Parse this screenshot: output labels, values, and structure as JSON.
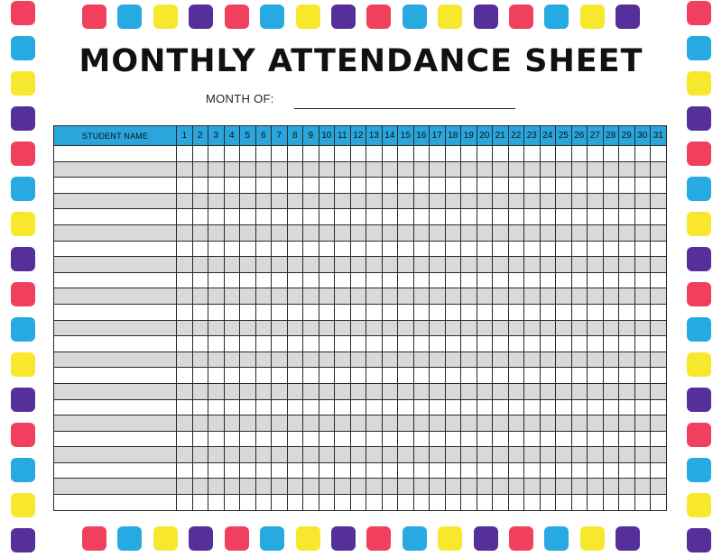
{
  "title": "MONTHLY ATTENDANCE SHEET",
  "month_label": "MONTH OF:",
  "table": {
    "name_header": "STUDENT NAME",
    "days": [
      "1",
      "2",
      "3",
      "4",
      "5",
      "6",
      "7",
      "8",
      "9",
      "10",
      "11",
      "12",
      "13",
      "14",
      "15",
      "16",
      "17",
      "18",
      "19",
      "20",
      "21",
      "22",
      "23",
      "24",
      "25",
      "26",
      "27",
      "28",
      "29",
      "30",
      "31"
    ],
    "row_count": 23
  },
  "colors": {
    "red": "#f0405e",
    "blue": "#27a9e1",
    "yellow": "#f7e82d",
    "purple": "#55309a",
    "header_blue": "#2aa6dd",
    "row_shade": "#d9d9d9"
  },
  "border_pattern": [
    "red",
    "blue",
    "yellow",
    "purple"
  ]
}
